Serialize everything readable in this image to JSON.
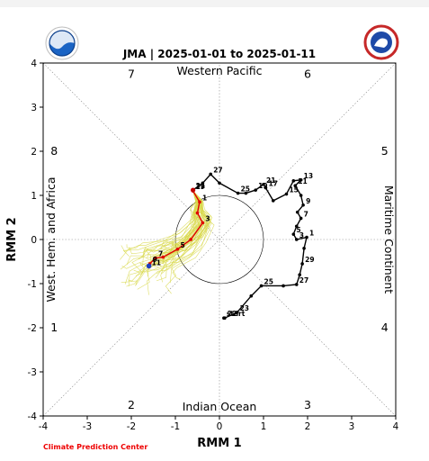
{
  "chart_data": {
    "type": "line",
    "title": "JMA | 2025-01-01 to 2025-01-11",
    "xlabel": "RMM 1",
    "ylabel": "RMM 2",
    "xlim": [
      -4,
      4
    ],
    "ylim": [
      -4,
      4
    ],
    "ticks": [
      "-4",
      "-3",
      "-2",
      "-1",
      "0",
      "1",
      "2",
      "3",
      "4"
    ],
    "phases": [
      {
        "label": "1",
        "x": -3.75,
        "y": -2.0
      },
      {
        "label": "2",
        "x": -2.0,
        "y": -3.75
      },
      {
        "label": "3",
        "x": 2.0,
        "y": -3.75
      },
      {
        "label": "4",
        "x": 3.75,
        "y": -2.0
      },
      {
        "label": "5",
        "x": 3.75,
        "y": 2.0
      },
      {
        "label": "6",
        "x": 2.0,
        "y": 3.75
      },
      {
        "label": "7",
        "x": -2.0,
        "y": 3.75
      },
      {
        "label": "8",
        "x": -3.75,
        "y": 2.0
      }
    ],
    "regions": {
      "top": "Western Pacific",
      "bottom": "Indian Ocean",
      "left": "West. Hem. and Africa",
      "right": "Maritime Continent"
    },
    "credit": "Climate Prediction Center",
    "observed": {
      "color": "#000000",
      "points": [
        {
          "x": 0.1,
          "y": -1.78,
          "label": "start"
        },
        {
          "x": 0.12,
          "y": -1.78,
          "label": "22"
        },
        {
          "x": 0.4,
          "y": -1.65,
          "label": "23"
        },
        {
          "x": 0.72,
          "y": -1.28,
          "label": ""
        },
        {
          "x": 0.95,
          "y": -1.05,
          "label": "25"
        },
        {
          "x": 1.45,
          "y": -1.05,
          "label": ""
        },
        {
          "x": 1.75,
          "y": -1.02,
          "label": "27"
        },
        {
          "x": 1.82,
          "y": -0.8,
          "label": ""
        },
        {
          "x": 1.88,
          "y": -0.55,
          "label": "29"
        },
        {
          "x": 1.92,
          "y": -0.2,
          "label": ""
        },
        {
          "x": 1.98,
          "y": 0.05,
          "label": "1"
        },
        {
          "x": 1.75,
          "y": 0.0,
          "label": "3"
        },
        {
          "x": 1.68,
          "y": 0.12,
          "label": "5"
        },
        {
          "x": 1.75,
          "y": 0.3,
          "label": ""
        },
        {
          "x": 1.85,
          "y": 0.48,
          "label": "7"
        },
        {
          "x": 1.77,
          "y": 0.62,
          "label": ""
        },
        {
          "x": 1.9,
          "y": 0.78,
          "label": "9"
        },
        {
          "x": 1.85,
          "y": 1.0,
          "label": ""
        },
        {
          "x": 1.72,
          "y": 1.22,
          "label": "11"
        },
        {
          "x": 1.85,
          "y": 1.35,
          "label": "13"
        },
        {
          "x": 1.68,
          "y": 1.33,
          "label": ""
        },
        {
          "x": 1.52,
          "y": 1.03,
          "label": "15"
        },
        {
          "x": 1.22,
          "y": 0.88,
          "label": ""
        },
        {
          "x": 1.05,
          "y": 1.17,
          "label": "17"
        },
        {
          "x": 1.0,
          "y": 1.25,
          "label": "21"
        },
        {
          "x": 0.82,
          "y": 1.12,
          "label": "19"
        },
        {
          "x": 0.6,
          "y": 1.05,
          "label": ""
        },
        {
          "x": 0.42,
          "y": 1.05,
          "label": "25"
        },
        {
          "x": 0.0,
          "y": 1.28,
          "label": ""
        },
        {
          "x": -0.2,
          "y": 1.48,
          "label": "27"
        },
        {
          "x": -0.38,
          "y": 1.28,
          "label": ""
        },
        {
          "x": -0.6,
          "y": 1.12,
          "label": "31"
        }
      ]
    },
    "forecast_mean": {
      "color": "#e00000",
      "points": [
        {
          "x": -0.6,
          "y": 1.1,
          "label": "29"
        },
        {
          "x": -0.45,
          "y": 0.85,
          "label": "1"
        },
        {
          "x": -0.5,
          "y": 0.6,
          "label": ""
        },
        {
          "x": -0.38,
          "y": 0.38,
          "label": "3"
        },
        {
          "x": -0.65,
          "y": 0.0,
          "label": ""
        },
        {
          "x": -0.95,
          "y": -0.22,
          "label": "5"
        },
        {
          "x": -1.28,
          "y": -0.4,
          "label": ""
        },
        {
          "x": -1.45,
          "y": -0.42,
          "label": "7"
        },
        {
          "x": -1.58,
          "y": -0.55,
          "label": "9"
        },
        {
          "x": -1.6,
          "y": -0.62,
          "label": "11"
        }
      ]
    },
    "forecast_final": {
      "color": "#1f3fbf",
      "x": -1.6,
      "y": -0.6
    },
    "ensemble_color": "#d8d84a"
  }
}
